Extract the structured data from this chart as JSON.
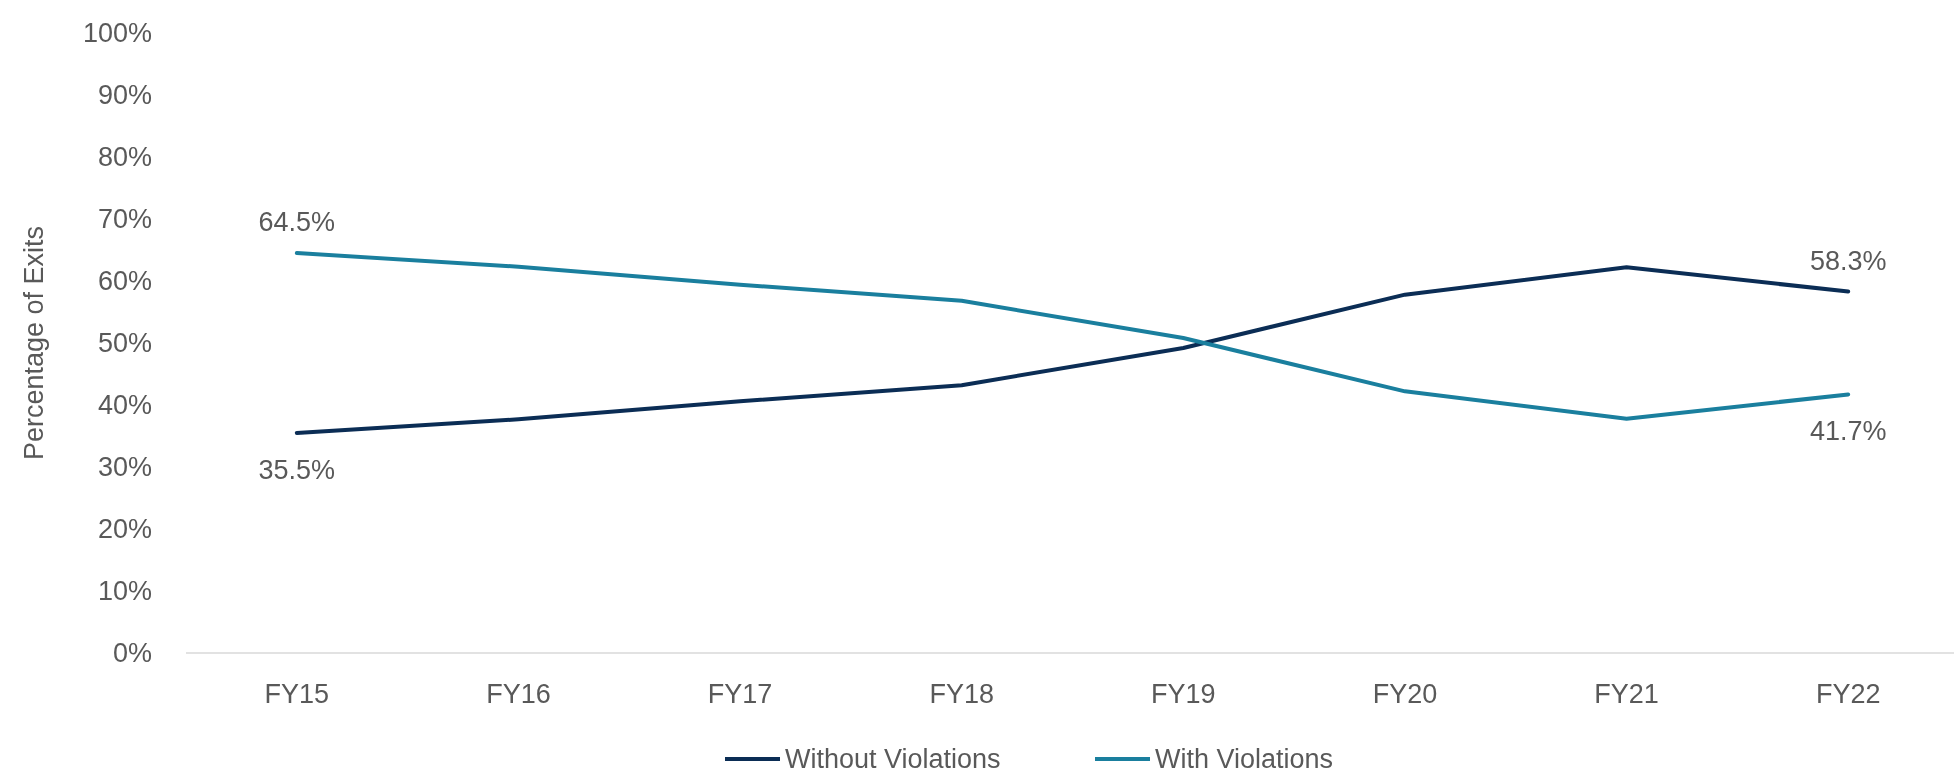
{
  "chart_data": {
    "type": "line",
    "ylabel": "Percentage of Exits",
    "categories": [
      "FY15",
      "FY16",
      "FY17",
      "FY18",
      "FY19",
      "FY20",
      "FY21",
      "FY22"
    ],
    "series": [
      {
        "name": "Without Violations",
        "color": "#0b2d55",
        "values": [
          35.5,
          37.7,
          40.6,
          43.2,
          49.2,
          57.8,
          62.2,
          58.3
        ],
        "value_labels": [
          "35.5%",
          null,
          null,
          null,
          null,
          null,
          null,
          "58.3%"
        ]
      },
      {
        "name": "With Violations",
        "color": "#1a7f9e",
        "values": [
          64.5,
          62.3,
          59.4,
          56.8,
          50.8,
          42.2,
          37.8,
          41.7
        ],
        "value_labels": [
          "64.5%",
          null,
          null,
          null,
          null,
          null,
          null,
          "41.7%"
        ]
      }
    ],
    "ylim": [
      0,
      100
    ],
    "yticks": [
      {
        "value": 0,
        "label": "0%"
      },
      {
        "value": 10,
        "label": "10%"
      },
      {
        "value": 20,
        "label": "20%"
      },
      {
        "value": 30,
        "label": "30%"
      },
      {
        "value": 40,
        "label": "40%"
      },
      {
        "value": 50,
        "label": "50%"
      },
      {
        "value": 60,
        "label": "60%"
      },
      {
        "value": 70,
        "label": "70%"
      },
      {
        "value": 80,
        "label": "80%"
      },
      {
        "value": 90,
        "label": "90%"
      },
      {
        "value": 100,
        "label": "100%"
      }
    ],
    "grid": false,
    "legend": "bottom",
    "marker": "none",
    "line_style": "solid"
  }
}
